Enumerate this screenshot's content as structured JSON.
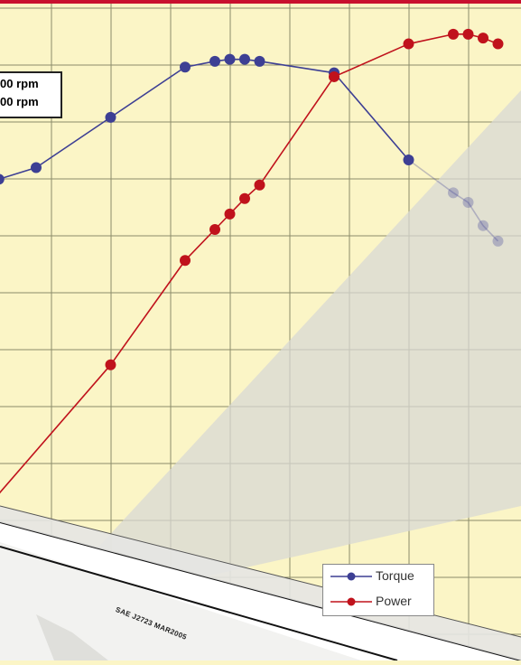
{
  "colors": {
    "background": "#fbf5c6",
    "grid": "#8b8b6a",
    "top_bar": "#c8102e",
    "torque": "#3d3f94",
    "power": "#c0121c",
    "watermark": "#d8d8d4"
  },
  "partial_box_lines": [
    "00 rpm",
    "00 rpm"
  ],
  "standard_label": "SAE J2723 MAR2005",
  "chart_data": {
    "type": "line",
    "title": "",
    "xlabel": "",
    "ylabel": "",
    "x_ticks": [],
    "y_ticks": [],
    "grid": true,
    "legend_position": "bottom-right",
    "x": [
      0,
      0.5,
      1.0,
      1.5,
      1.7,
      1.8,
      1.9,
      2.0,
      2.5,
      3.0,
      3.3,
      3.5,
      3.7,
      3.9
    ],
    "series": [
      {
        "name": "Torque",
        "color": "#3d3f94",
        "x": [
          -0.25,
          0,
          0.5,
          1.0,
          1.2,
          1.3,
          1.4,
          1.5,
          2.0,
          2.5,
          2.8,
          2.9,
          3.0,
          3.1
        ],
        "y": [
          8.8,
          9.1,
          10.4,
          11.7,
          11.85,
          11.9,
          11.9,
          11.85,
          11.55,
          9.3,
          8.45,
          8.2,
          7.6,
          7.2
        ],
        "faded_from_index": 10
      },
      {
        "name": "Power",
        "color": "#c0121c",
        "x": [
          -0.4,
          0.5,
          1.0,
          1.2,
          1.3,
          1.4,
          1.5,
          2.0,
          2.5,
          2.8,
          2.9,
          3.0,
          3.1
        ],
        "y": [
          0,
          4.0,
          6.7,
          7.5,
          7.9,
          8.3,
          8.65,
          11.45,
          12.3,
          12.55,
          12.55,
          12.45,
          12.3
        ]
      }
    ]
  }
}
